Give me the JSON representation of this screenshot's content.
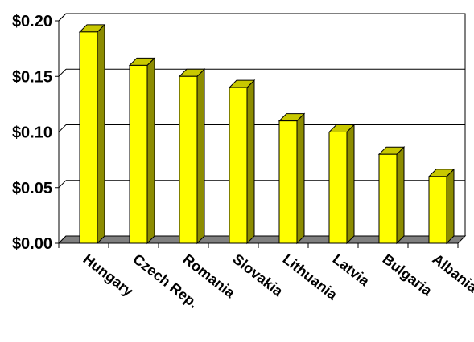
{
  "chart_data": {
    "type": "bar",
    "title": "",
    "xlabel": "",
    "ylabel": "",
    "categories": [
      "Hungary",
      "Czech Rep.",
      "Romania",
      "Slovakia",
      "Lithuania",
      "Latvia",
      "Bulgaria",
      "Albania"
    ],
    "values": [
      0.19,
      0.16,
      0.15,
      0.14,
      0.11,
      0.1,
      0.08,
      0.06
    ],
    "ylim": [
      0.0,
      0.2
    ],
    "y_ticks": [
      "$0.00",
      "$0.05",
      "$0.10",
      "$0.15",
      "$0.20"
    ],
    "y_tick_values": [
      0.0,
      0.05,
      0.1,
      0.15,
      0.2
    ],
    "grid": true,
    "legend": "none",
    "style": "3d",
    "colors": {
      "bar_front": "#FFFF00",
      "bar_side": "#8C8C00",
      "bar_top": "#C8C800",
      "floor": "#808080",
      "grid": "#000000",
      "plot_border": "#000000"
    }
  }
}
